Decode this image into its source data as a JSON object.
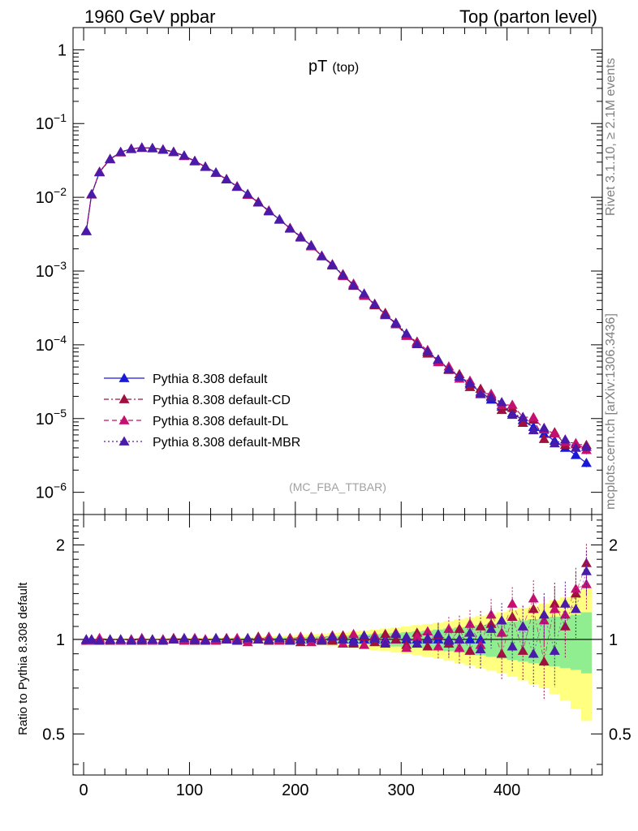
{
  "header": {
    "left": "1960 GeV ppbar",
    "right": "Top (parton level)"
  },
  "side_labels": {
    "rivet": "Rivet 3.1.10, ≥ 2.1M events",
    "mcplots": "mcplots.cern.ch [arXiv:1306.3436]"
  },
  "colors": {
    "default": "#1a1ad6",
    "cd": "#a0103e",
    "dl": "#c4106e",
    "mbr": "#4a1aa8",
    "band_green": "#90ee90",
    "band_yellow": "#ffff80"
  },
  "chart_data": [
    {
      "type": "line",
      "title": "pT",
      "title_sub": "(top)",
      "annotation": "(MC_FBA_TTBAR)",
      "xlabel": "",
      "ylabel": "",
      "xlim": [
        -10,
        490
      ],
      "ylim": [
        5e-07,
        2
      ],
      "yscale": "log",
      "y_ticks": [
        {
          "value": 1,
          "base": "1",
          "exp": ""
        },
        {
          "value": 0.1,
          "base": "10",
          "exp": "−1"
        },
        {
          "value": 0.01,
          "base": "10",
          "exp": "−2"
        },
        {
          "value": 0.001,
          "base": "10",
          "exp": "−3"
        },
        {
          "value": 0.0001,
          "base": "10",
          "exp": "−4"
        },
        {
          "value": 1e-05,
          "base": "10",
          "exp": "−5"
        },
        {
          "value": 1e-06,
          "base": "10",
          "exp": "−6"
        }
      ],
      "legend_position": "lower-left",
      "series": [
        {
          "name": "Pythia 8.308 default",
          "key": "default",
          "line": "solid"
        },
        {
          "name": "Pythia 8.308 default-CD",
          "key": "cd",
          "line": "dashdot"
        },
        {
          "name": "Pythia 8.308 default-DL",
          "key": "dl",
          "line": "dashed"
        },
        {
          "name": "Pythia 8.308 default-MBR",
          "key": "mbr",
          "line": "dotted"
        }
      ],
      "x": [
        2.5,
        7.5,
        15,
        25,
        35,
        45,
        55,
        65,
        75,
        85,
        95,
        105,
        115,
        125,
        135,
        145,
        155,
        165,
        175,
        185,
        195,
        205,
        215,
        225,
        235,
        245,
        255,
        265,
        275,
        285,
        295,
        305,
        315,
        325,
        335,
        345,
        355,
        365,
        375,
        385,
        395,
        405,
        415,
        425,
        435,
        445,
        455,
        465,
        475
      ],
      "y_default": [
        0.0035,
        0.011,
        0.022,
        0.033,
        0.041,
        0.0455,
        0.047,
        0.0465,
        0.0445,
        0.041,
        0.0365,
        0.031,
        0.026,
        0.0215,
        0.0175,
        0.014,
        0.011,
        0.0085,
        0.0065,
        0.005,
        0.0038,
        0.0029,
        0.0022,
        0.0016,
        0.0012,
        0.00088,
        0.00065,
        0.00048,
        0.00035,
        0.00026,
        0.00019,
        0.00014,
        0.000105,
        8e-05,
        6.1e-05,
        4.7e-05,
        3.7e-05,
        2.9e-05,
        2.3e-05,
        1.8e-05,
        1.45e-05,
        1.18e-05,
        9.5e-06,
        7.7e-06,
        6.2e-06,
        5e-06,
        4e-06,
        3.2e-06,
        2.5e-06
      ]
    },
    {
      "type": "line",
      "title": "",
      "xlabel": "",
      "ylabel": "Ratio to Pythia 8.308 default",
      "xlim": [
        -10,
        490
      ],
      "ylim": [
        0.37,
        2.5
      ],
      "yscale": "log",
      "y_ticks": [
        2,
        1,
        0.5
      ],
      "x_ticks": [
        0,
        100,
        200,
        300,
        400
      ],
      "reference": 1,
      "ratio_cd": [
        0.99,
        1.0,
        1.0,
        0.99,
        1.0,
        1.0,
        0.99,
        1.0,
        1.0,
        1.01,
        1.0,
        0.99,
        1.0,
        1.0,
        1.01,
        0.99,
        1.0,
        1.02,
        0.99,
        1.0,
        1.01,
        0.98,
        1.02,
        1.0,
        0.99,
        1.03,
        0.97,
        1.02,
        0.98,
        1.04,
        1.0,
        0.96,
        1.05,
        0.95,
        1.03,
        0.97,
        1.08,
        0.92,
        1.1,
        1.12,
        0.9,
        1.18,
        0.92,
        1.25,
        0.85,
        1.3,
        1.1,
        1.4,
        1.75
      ],
      "ratio_dl": [
        1.0,
        0.99,
        1.01,
        1.0,
        0.99,
        1.0,
        1.01,
        0.99,
        1.0,
        1.0,
        0.99,
        1.01,
        1.0,
        0.99,
        1.0,
        1.01,
        0.98,
        1.0,
        1.02,
        0.99,
        1.0,
        1.02,
        0.98,
        1.01,
        1.03,
        0.97,
        1.04,
        0.96,
        1.03,
        0.98,
        1.05,
        0.94,
        1.02,
        1.06,
        0.95,
        1.08,
        0.94,
        1.12,
        0.96,
        1.2,
        1.05,
        1.3,
        1.1,
        1.35,
        1.15,
        1.25,
        1.2,
        1.45,
        1.5
      ],
      "ratio_mbr": [
        1.0,
        1.0,
        0.99,
        1.0,
        1.0,
        0.99,
        1.0,
        1.0,
        0.99,
        1.0,
        1.01,
        1.0,
        0.99,
        1.01,
        1.0,
        0.99,
        1.01,
        1.0,
        1.0,
        1.01,
        0.99,
        1.0,
        1.01,
        0.99,
        1.02,
        1.0,
        0.98,
        1.03,
        1.01,
        0.97,
        1.04,
        1.02,
        0.97,
        1.01,
        1.04,
        0.99,
        1.0,
        1.05,
        0.93,
        1.08,
        1.15,
        0.95,
        1.1,
        0.9,
        1.2,
        0.92,
        1.3,
        1.25,
        1.65
      ],
      "band_green_halfwidth": [
        0.005,
        0.005,
        0.004,
        0.004,
        0.004,
        0.004,
        0.004,
        0.004,
        0.004,
        0.004,
        0.005,
        0.005,
        0.006,
        0.006,
        0.007,
        0.008,
        0.009,
        0.01,
        0.011,
        0.013,
        0.015,
        0.017,
        0.019,
        0.022,
        0.025,
        0.028,
        0.032,
        0.036,
        0.04,
        0.045,
        0.05,
        0.055,
        0.06,
        0.067,
        0.075,
        0.083,
        0.092,
        0.1,
        0.11,
        0.12,
        0.13,
        0.14,
        0.15,
        0.16,
        0.17,
        0.18,
        0.19,
        0.2,
        0.22
      ],
      "band_yellow_halfwidth": [
        0.01,
        0.01,
        0.008,
        0.008,
        0.008,
        0.008,
        0.008,
        0.008,
        0.008,
        0.009,
        0.01,
        0.011,
        0.012,
        0.013,
        0.015,
        0.017,
        0.019,
        0.021,
        0.024,
        0.027,
        0.03,
        0.034,
        0.038,
        0.043,
        0.048,
        0.054,
        0.06,
        0.067,
        0.075,
        0.083,
        0.092,
        0.1,
        0.11,
        0.12,
        0.13,
        0.145,
        0.16,
        0.175,
        0.19,
        0.205,
        0.22,
        0.24,
        0.26,
        0.28,
        0.3,
        0.33,
        0.36,
        0.4,
        0.45
      ]
    }
  ]
}
